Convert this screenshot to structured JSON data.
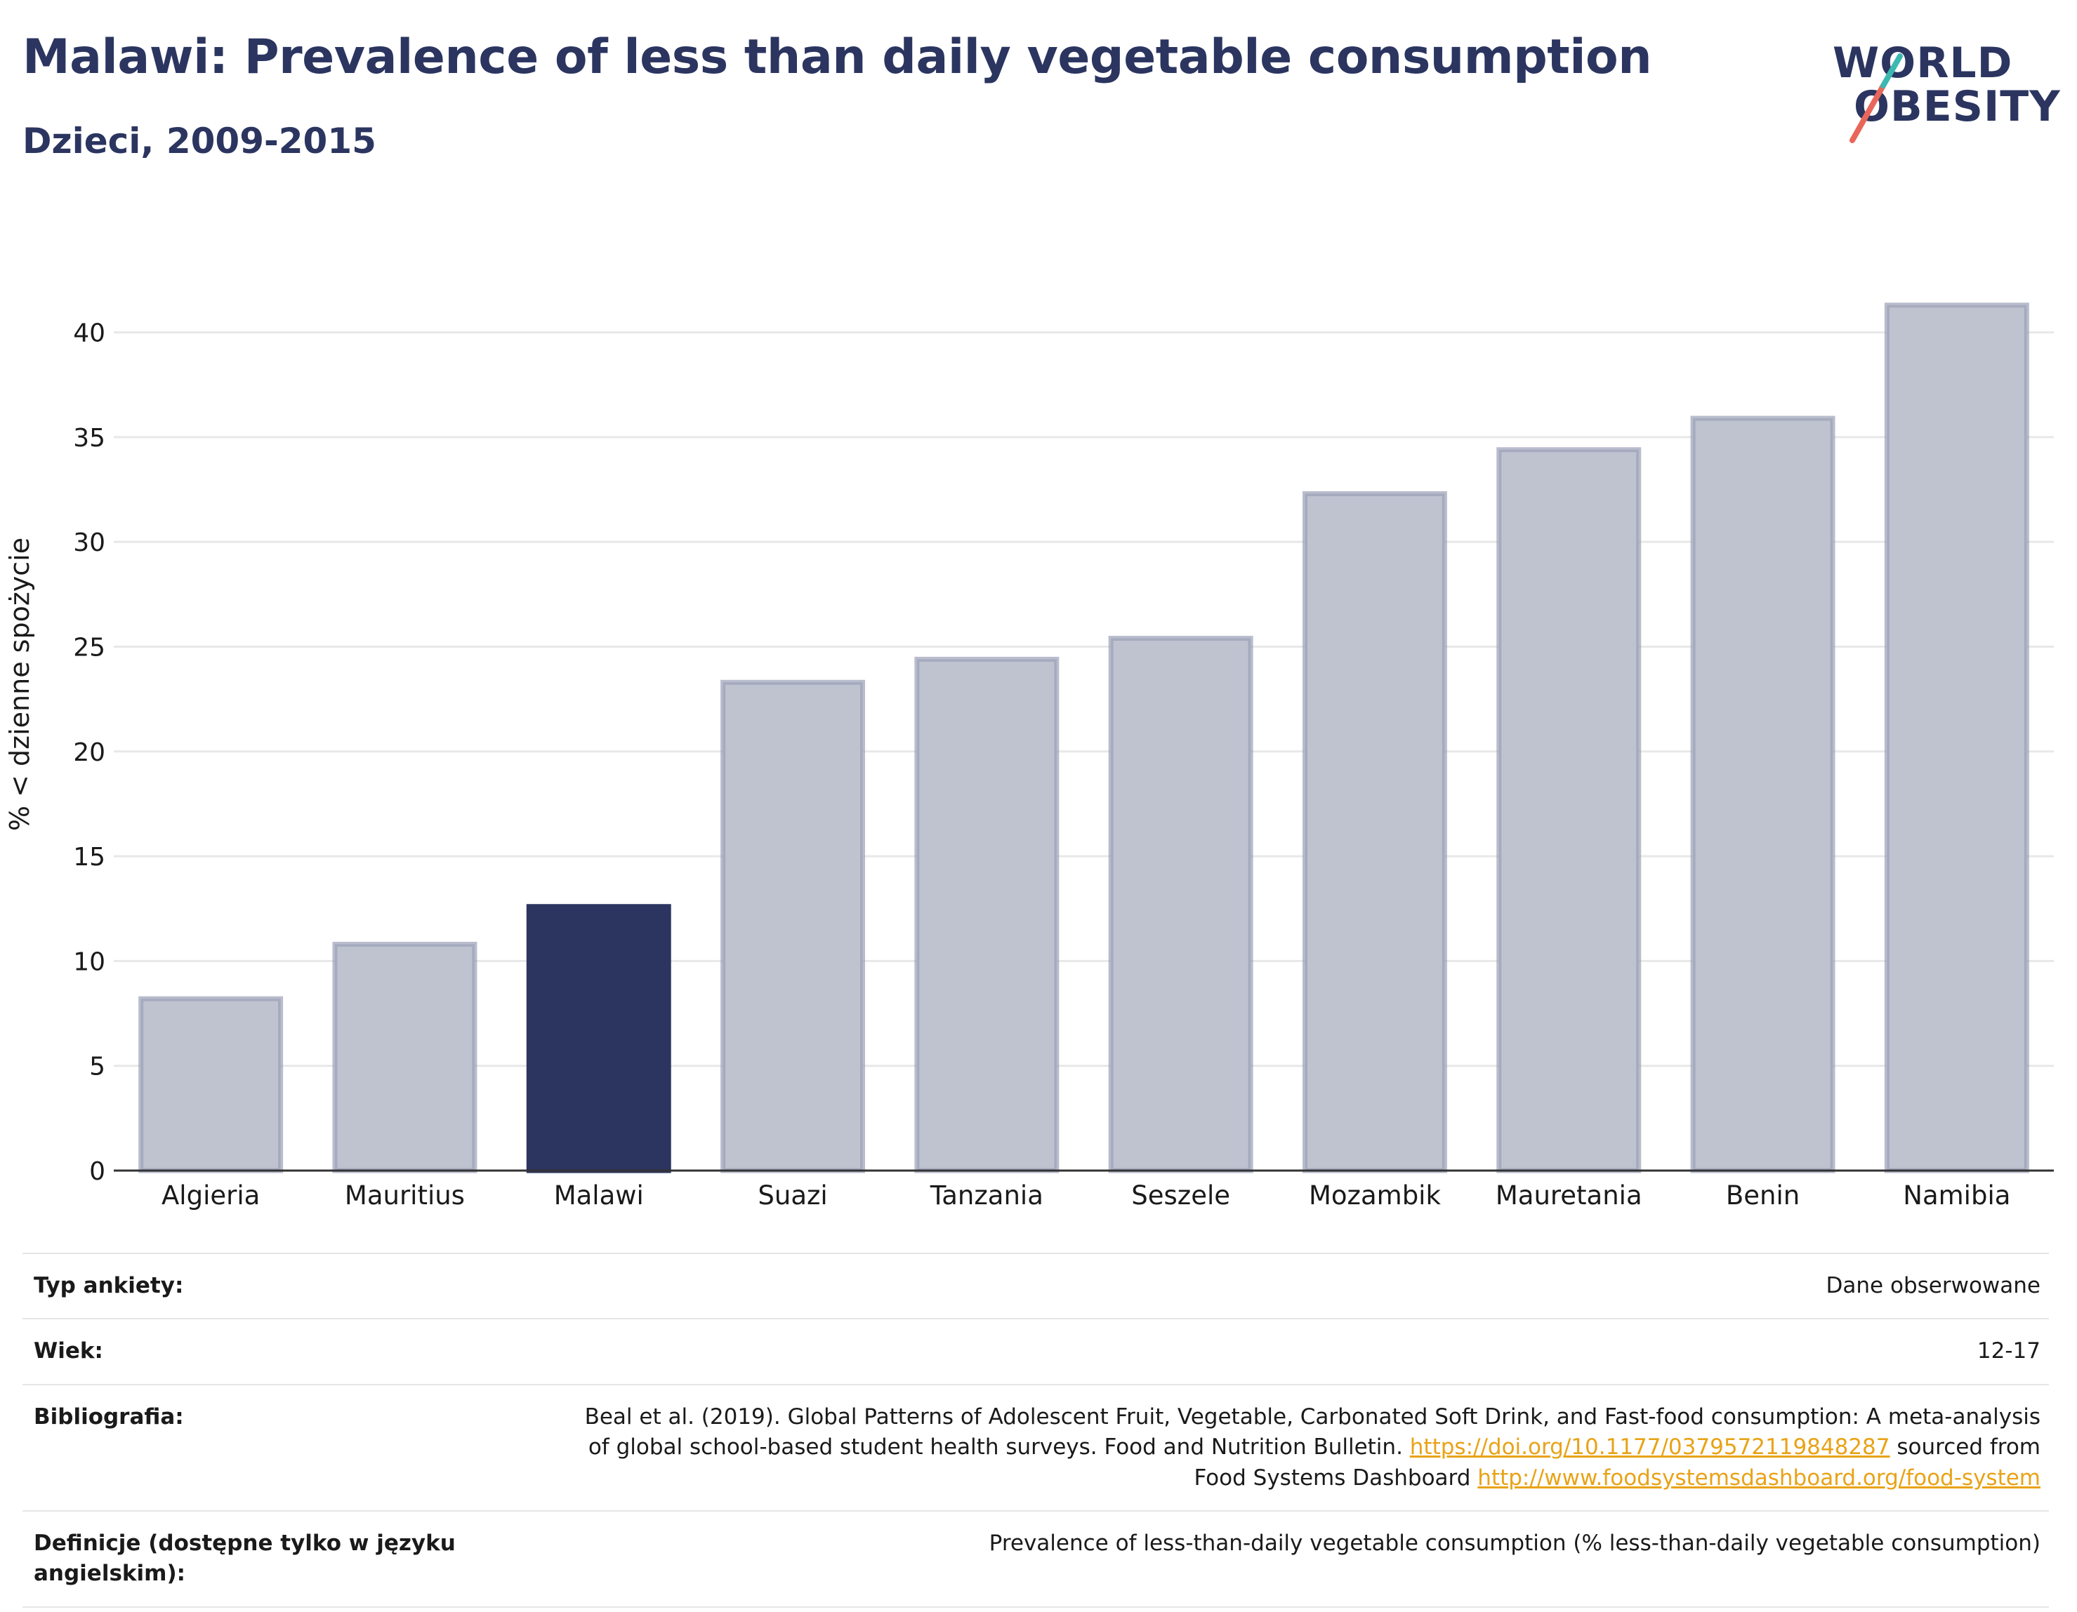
{
  "title": "Malawi: Prevalence of less than daily vegetable consumption",
  "subtitle": "Dzieci, 2009-2015",
  "logo": {
    "line1": "WORLD",
    "line2": "OBESITY",
    "slash_colors": [
      "#e8675a",
      "#3bb8b0"
    ]
  },
  "colors": {
    "highlight": "#2b3560",
    "bar_fill": "#bfc3d0",
    "bar_edge": "#9aa0b6",
    "grid": "#e8e8e8",
    "link": "#e8a317"
  },
  "chart_data": {
    "type": "bar",
    "categories": [
      "Algieria",
      "Mauritius",
      "Malawi",
      "Suazi",
      "Tanzania",
      "Seszele",
      "Mozambik",
      "Mauretania",
      "Benin",
      "Namibia"
    ],
    "values": [
      8.2,
      10.8,
      12.6,
      23.3,
      24.4,
      25.4,
      32.3,
      34.4,
      35.9,
      41.3
    ],
    "highlight": "Malawi",
    "ylabel": "% < dzienne spożycie",
    "xlabel": "",
    "ylim": [
      0,
      43
    ],
    "yticks": [
      0,
      5,
      10,
      15,
      20,
      25,
      30,
      35,
      40
    ],
    "grid": true
  },
  "meta": {
    "survey_type_label": "Typ ankiety:",
    "survey_type_value": "Dane obserwowane",
    "age_label": "Wiek:",
    "age_value": "12-17",
    "bibliography_label": "Bibliografia:",
    "bibliography_line1": "Beal et al. (2019). Global Patterns of Adolescent Fruit, Vegetable, Carbonated Soft Drink, and Fast-food consumption: A meta-analysis",
    "bibliography_line2_a": "of global school-based student health surveys. Food and Nutrition Bulletin.",
    "bibliography_link1": "https://doi.org/10.1177/0379572119848287",
    "bibliography_line2_b": "sourced from",
    "bibliography_line3_a": "Food Systems Dashboard",
    "bibliography_link2": "http://www.foodsystemsdashboard.org/food-system",
    "definitions_label": "Definicje (dostępne tylko w języku angielskim):",
    "definitions_value": "Prevalence of less-than-daily vegetable consumption (% less-than-daily vegetable consumption)"
  }
}
